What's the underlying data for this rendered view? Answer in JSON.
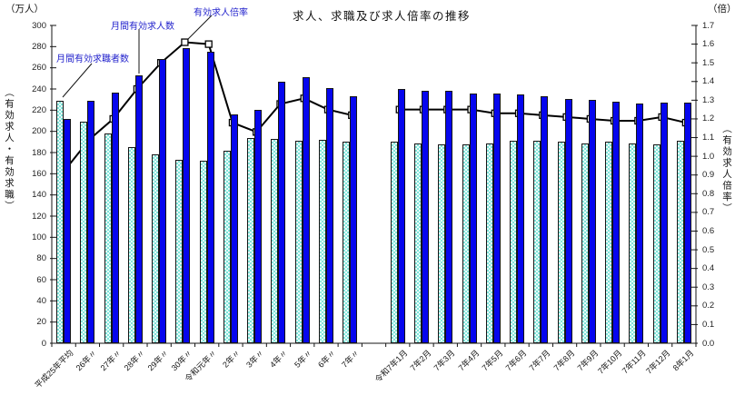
{
  "title": "求人、求職及び求人倍率の推移",
  "axes": {
    "left_unit": "（万人）",
    "right_unit": "（倍）",
    "left_label": "（有効求人・有効求職）",
    "right_label": "（有効求人倍率）",
    "left_min": 0,
    "left_max": 300,
    "left_step": 20,
    "right_min": 0.0,
    "right_max": 1.7,
    "right_step": 0.1,
    "grid": false
  },
  "annotations": {
    "seekers": "月間有効求職者数",
    "openings": "月間有効求人数",
    "ratio": "有効求人倍率"
  },
  "colors": {
    "openings_bar": "#0606ee",
    "seekers_bar_pattern": "#7fe3d8",
    "seekers_bar_bg": "#eafcfa",
    "ratio_line": "#000000",
    "marker_fill": "#ffffff",
    "annotation_text": "#2222cc"
  },
  "chart_data": {
    "type": "bar+line",
    "bar_unit": "万人",
    "line_unit": "倍",
    "ylim_left": [
      0,
      300
    ],
    "ylim_right": [
      0.0,
      1.7
    ],
    "legend_position": "annotations-top-left",
    "series_names": [
      "月間有効求職者数",
      "月間有効求人数",
      "有効求人倍率"
    ],
    "sections": [
      {
        "name": "annual-averages",
        "categories": [
          "平成25年平均",
          "26年〃",
          "27年〃",
          "28年〃",
          "29年〃",
          "30年〃",
          "令和元年〃",
          "2年〃",
          "3年〃",
          "4年〃",
          "5年〃",
          "6年〃",
          "7年〃"
        ],
        "seekers": [
          229,
          209,
          198,
          185,
          178,
          173,
          172,
          182,
          194,
          193,
          191,
          192,
          190
        ],
        "openings": [
          212,
          229,
          237,
          253,
          268,
          279,
          275,
          216,
          220,
          247,
          251,
          241,
          233
        ],
        "ratio": [
          0.93,
          1.09,
          1.2,
          1.36,
          1.5,
          1.61,
          1.6,
          1.18,
          1.13,
          1.28,
          1.31,
          1.25,
          1.22
        ]
      },
      {
        "name": "monthly",
        "categories": [
          "令和7年1月",
          "7年2月",
          "7年3月",
          "7年4月",
          "7年5月",
          "7年6月",
          "7年7月",
          "7年8月",
          "7年9月",
          "7年10月",
          "7年11月",
          "7年12月",
          "8年1月"
        ],
        "seekers": [
          190,
          189,
          188,
          188,
          189,
          191,
          191,
          190,
          189,
          190,
          189,
          188,
          191
        ],
        "openings": [
          240,
          238,
          238,
          236,
          236,
          235,
          233,
          231,
          230,
          228,
          226,
          227,
          227
        ],
        "ratio": [
          1.25,
          1.25,
          1.25,
          1.25,
          1.23,
          1.23,
          1.22,
          1.21,
          1.2,
          1.19,
          1.19,
          1.21,
          1.18
        ]
      }
    ]
  }
}
